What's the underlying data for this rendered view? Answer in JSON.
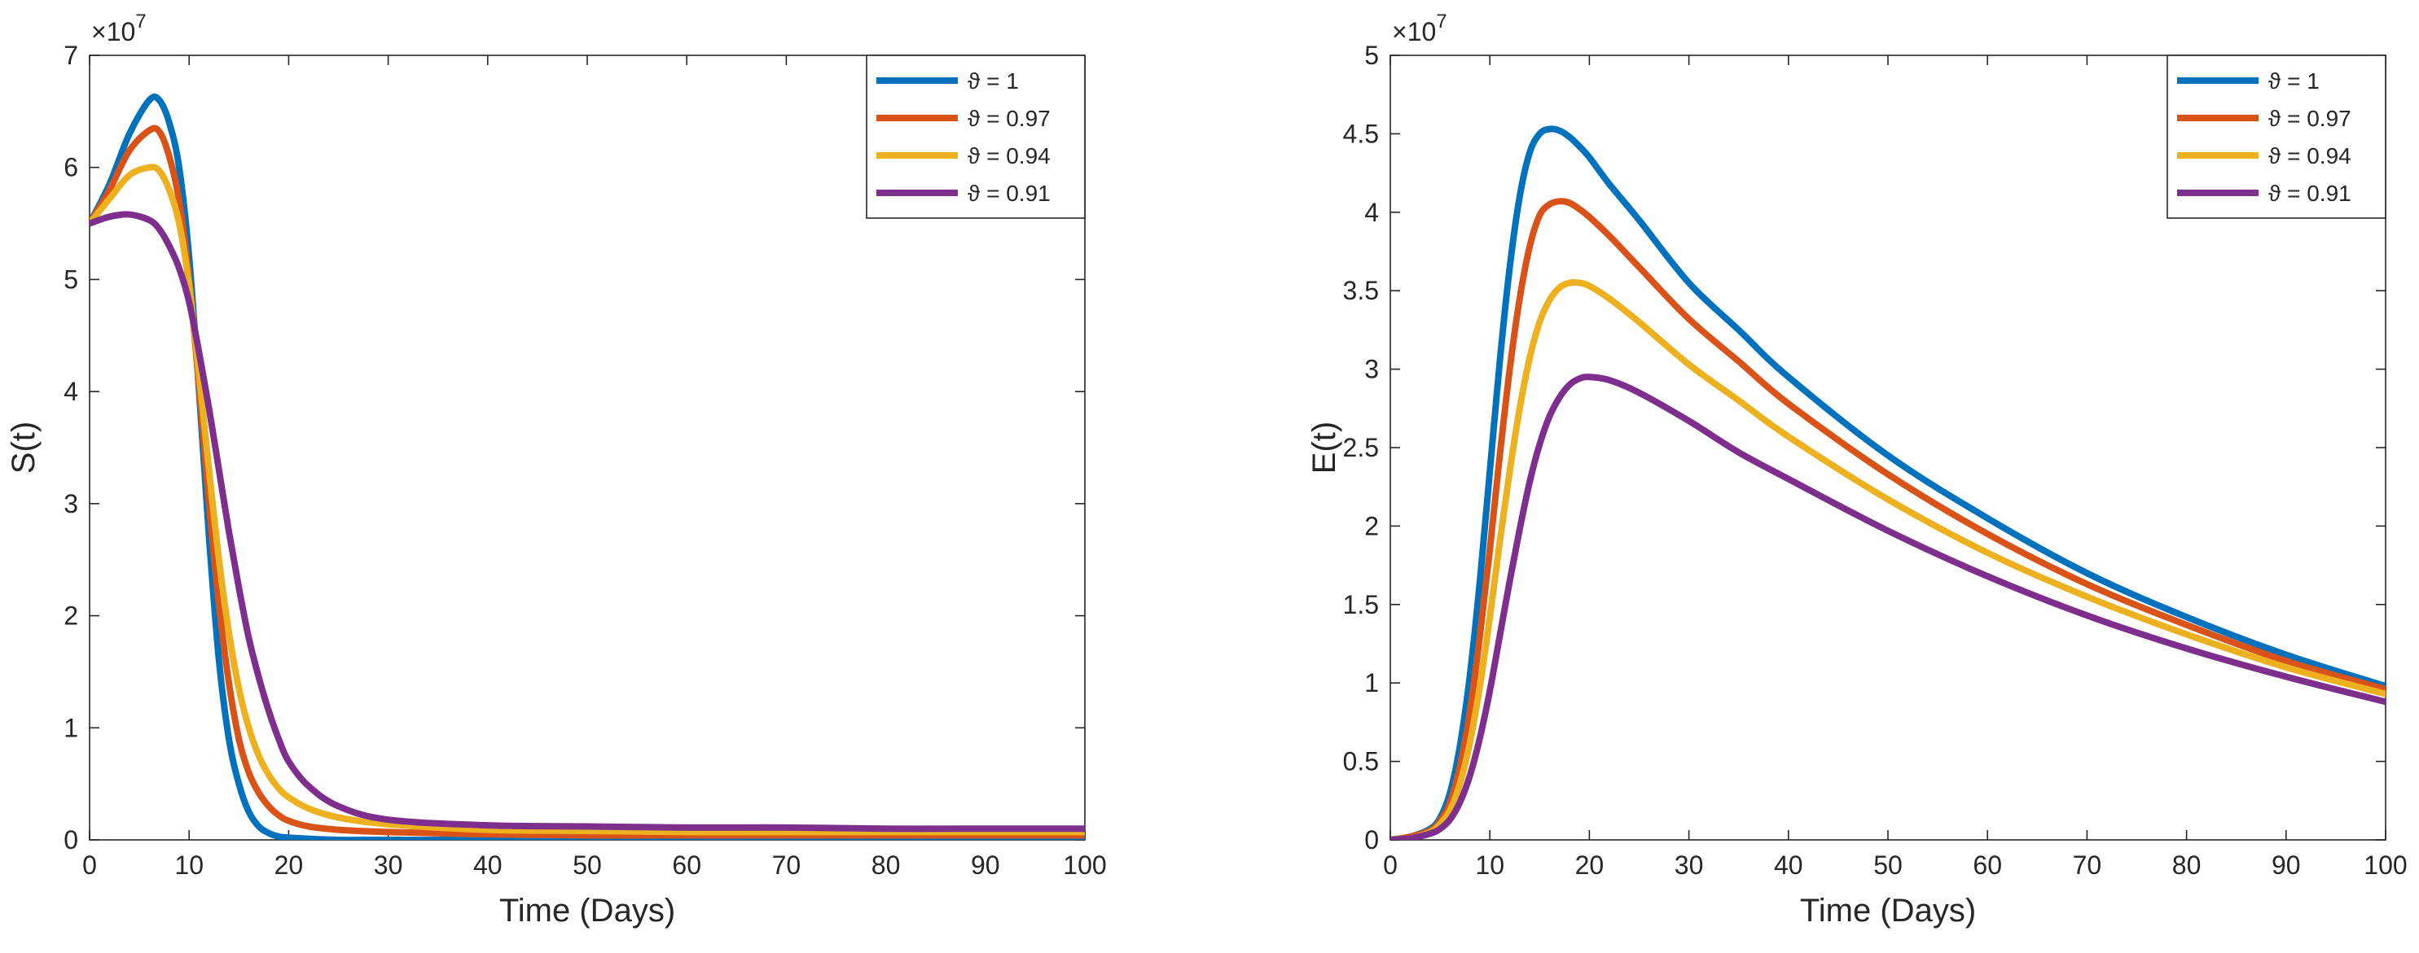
{
  "chart_data": [
    {
      "type": "line",
      "title": "",
      "xlabel": "Time (Days)",
      "ylabel": "S(t)",
      "y_exponent_base": "×10",
      "y_exponent_power": "7",
      "xlim": [
        0,
        100
      ],
      "ylim": [
        0,
        7
      ],
      "xticks": [
        0,
        10,
        20,
        30,
        40,
        50,
        60,
        70,
        80,
        90,
        100
      ],
      "yticks": [
        0,
        1,
        2,
        3,
        4,
        5,
        6,
        7
      ],
      "legend_position": "top-right",
      "grid": false,
      "series": [
        {
          "name": "ϑ = 1",
          "color": "#0072BD",
          "x": [
            0,
            2,
            4,
            6,
            7,
            8,
            9,
            10,
            11,
            12,
            13,
            14,
            15,
            16,
            17,
            18,
            19,
            20,
            22,
            25,
            30,
            40,
            50,
            60,
            70,
            80,
            90,
            100
          ],
          "y": [
            5.5,
            5.85,
            6.3,
            6.6,
            6.6,
            6.4,
            6.0,
            5.2,
            4.0,
            2.7,
            1.6,
            0.9,
            0.5,
            0.25,
            0.12,
            0.06,
            0.03,
            0.02,
            0.01,
            0.0,
            0.0,
            0.0,
            0.0,
            0.0,
            0.0,
            0.0,
            0.0,
            0.0
          ]
        },
        {
          "name": "ϑ = 0.97",
          "color": "#D95319",
          "x": [
            0,
            2,
            4,
            6,
            7,
            8,
            9,
            10,
            11,
            12,
            13,
            14,
            15,
            16,
            17,
            18,
            19,
            20,
            22,
            25,
            30,
            40,
            50,
            60,
            70,
            80,
            90,
            100
          ],
          "y": [
            5.5,
            5.8,
            6.15,
            6.33,
            6.32,
            6.1,
            5.7,
            5.0,
            4.05,
            3.0,
            2.1,
            1.4,
            0.9,
            0.6,
            0.42,
            0.3,
            0.22,
            0.17,
            0.12,
            0.09,
            0.07,
            0.05,
            0.04,
            0.04,
            0.04,
            0.04,
            0.04,
            0.04
          ]
        },
        {
          "name": "ϑ = 0.94",
          "color": "#EDB120",
          "x": [
            0,
            2,
            4,
            6,
            7,
            8,
            9,
            10,
            11,
            12,
            13,
            14,
            15,
            16,
            17,
            18,
            19,
            20,
            22,
            25,
            30,
            40,
            50,
            60,
            70,
            80,
            90,
            100
          ],
          "y": [
            5.5,
            5.72,
            5.93,
            6.0,
            5.97,
            5.8,
            5.5,
            4.95,
            4.15,
            3.3,
            2.5,
            1.85,
            1.35,
            1.0,
            0.75,
            0.58,
            0.46,
            0.38,
            0.28,
            0.2,
            0.14,
            0.09,
            0.08,
            0.07,
            0.07,
            0.07,
            0.07,
            0.07
          ]
        },
        {
          "name": "ϑ = 0.91",
          "color": "#7E2F8E",
          "x": [
            0,
            2,
            4,
            6,
            7,
            8,
            9,
            10,
            11,
            12,
            13,
            14,
            15,
            16,
            17,
            18,
            19,
            20,
            22,
            25,
            30,
            40,
            50,
            60,
            70,
            80,
            90,
            100
          ],
          "y": [
            5.5,
            5.56,
            5.58,
            5.53,
            5.45,
            5.3,
            5.1,
            4.8,
            4.35,
            3.85,
            3.3,
            2.75,
            2.25,
            1.8,
            1.45,
            1.15,
            0.9,
            0.7,
            0.48,
            0.3,
            0.18,
            0.13,
            0.12,
            0.11,
            0.11,
            0.1,
            0.1,
            0.1
          ]
        }
      ]
    },
    {
      "type": "line",
      "title": "",
      "xlabel": "Time (Days)",
      "ylabel": "E(t)",
      "y_exponent_base": "×10",
      "y_exponent_power": "7",
      "xlim": [
        0,
        100
      ],
      "ylim": [
        0,
        5
      ],
      "xticks": [
        0,
        10,
        20,
        30,
        40,
        50,
        60,
        70,
        80,
        90,
        100
      ],
      "yticks": [
        0,
        0.5,
        1,
        1.5,
        2,
        2.5,
        3,
        3.5,
        4,
        4.5,
        5
      ],
      "legend_position": "top-right",
      "grid": false,
      "series": [
        {
          "name": "ϑ = 1",
          "color": "#0072BD",
          "x": [
            0,
            2,
            4,
            5,
            6,
            7,
            8,
            9,
            10,
            11,
            12,
            13,
            14,
            15,
            16,
            17,
            18,
            19,
            20,
            22,
            25,
            30,
            35,
            40,
            50,
            60,
            70,
            80,
            90,
            100
          ],
          "y": [
            0.0,
            0.02,
            0.07,
            0.14,
            0.3,
            0.6,
            1.05,
            1.65,
            2.35,
            3.05,
            3.65,
            4.1,
            4.38,
            4.5,
            4.53,
            4.52,
            4.48,
            4.42,
            4.35,
            4.18,
            3.95,
            3.55,
            3.25,
            2.95,
            2.45,
            2.05,
            1.7,
            1.42,
            1.18,
            0.98
          ]
        },
        {
          "name": "ϑ = 0.97",
          "color": "#D95319",
          "x": [
            0,
            2,
            4,
            5,
            6,
            7,
            8,
            9,
            10,
            11,
            12,
            13,
            14,
            15,
            16,
            17,
            18,
            19,
            20,
            22,
            25,
            30,
            35,
            40,
            50,
            60,
            70,
            80,
            90,
            100
          ],
          "y": [
            0.0,
            0.02,
            0.06,
            0.12,
            0.24,
            0.47,
            0.82,
            1.3,
            1.85,
            2.45,
            3.0,
            3.45,
            3.78,
            3.98,
            4.05,
            4.07,
            4.06,
            4.02,
            3.97,
            3.85,
            3.65,
            3.32,
            3.05,
            2.78,
            2.33,
            1.95,
            1.63,
            1.37,
            1.14,
            0.96
          ]
        },
        {
          "name": "ϑ = 0.94",
          "color": "#EDB120",
          "x": [
            0,
            2,
            4,
            5,
            6,
            7,
            8,
            9,
            10,
            11,
            12,
            13,
            14,
            15,
            16,
            17,
            18,
            19,
            20,
            22,
            25,
            30,
            35,
            40,
            50,
            60,
            70,
            80,
            90,
            100
          ],
          "y": [
            0.0,
            0.01,
            0.05,
            0.1,
            0.19,
            0.36,
            0.62,
            0.98,
            1.42,
            1.9,
            2.35,
            2.75,
            3.07,
            3.3,
            3.44,
            3.52,
            3.55,
            3.55,
            3.53,
            3.45,
            3.3,
            3.03,
            2.8,
            2.57,
            2.17,
            1.83,
            1.55,
            1.31,
            1.1,
            0.93
          ]
        },
        {
          "name": "ϑ = 0.91",
          "color": "#7E2F8E",
          "x": [
            0,
            2,
            4,
            5,
            6,
            7,
            8,
            9,
            10,
            11,
            12,
            13,
            14,
            15,
            16,
            17,
            18,
            19,
            20,
            22,
            25,
            30,
            35,
            40,
            50,
            60,
            70,
            80,
            90,
            100
          ],
          "y": [
            0.0,
            0.01,
            0.04,
            0.07,
            0.13,
            0.24,
            0.41,
            0.65,
            0.95,
            1.3,
            1.65,
            1.98,
            2.28,
            2.52,
            2.7,
            2.82,
            2.9,
            2.94,
            2.95,
            2.93,
            2.85,
            2.67,
            2.47,
            2.3,
            1.97,
            1.68,
            1.43,
            1.22,
            1.04,
            0.88
          ]
        }
      ]
    }
  ]
}
